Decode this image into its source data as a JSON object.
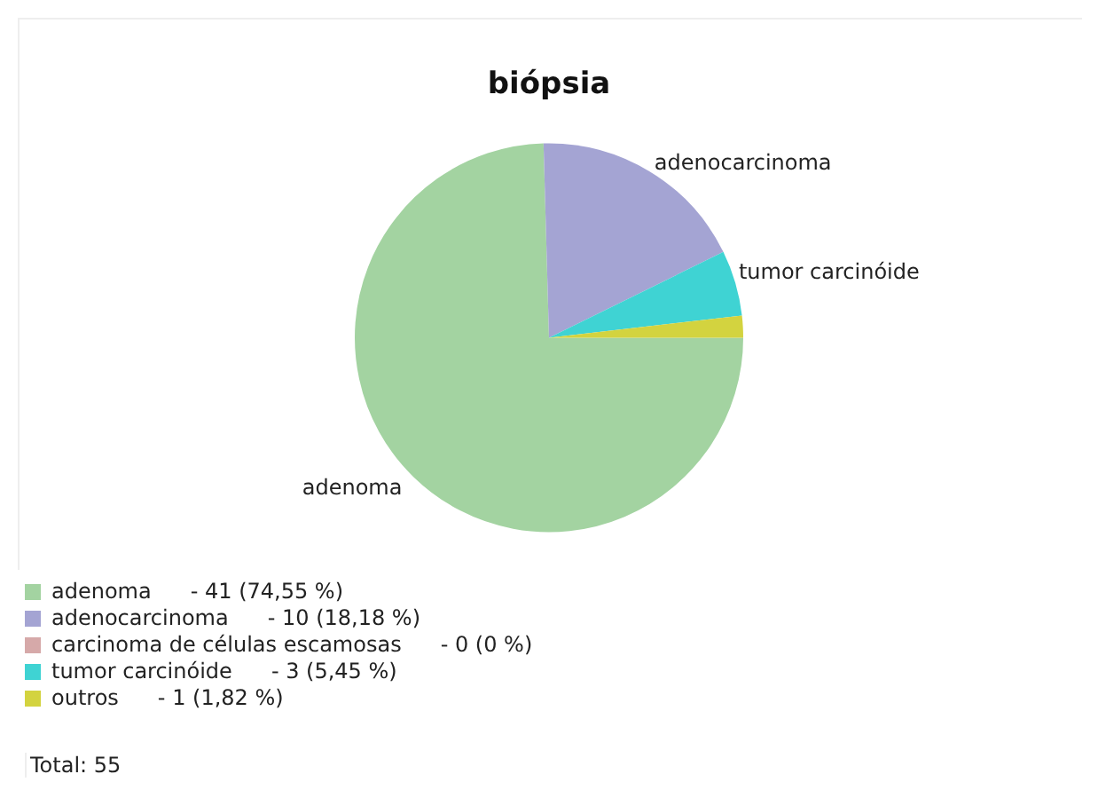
{
  "chart_data": {
    "type": "pie",
    "title": "biópsia",
    "categories": [
      "adenoma",
      "adenocarcinoma",
      "carcinoma de células escamosas",
      "tumor carcinóide",
      "outros"
    ],
    "values": [
      74.55,
      18.18,
      0,
      5.45,
      1.82
    ],
    "colors": [
      "#a3d3a1",
      "#a4a4d3",
      "#d6a9a9",
      "#3fd3d3",
      "#d3d33f"
    ],
    "legend": "bottom",
    "annotations": [
      "- 41 (74,55 %)",
      "- 10 (18,18 %)",
      "- 0 (0 %)",
      "- 3 (5,45 %)",
      "- 1 (1,82 %)",
      "Total: 55"
    ]
  }
}
